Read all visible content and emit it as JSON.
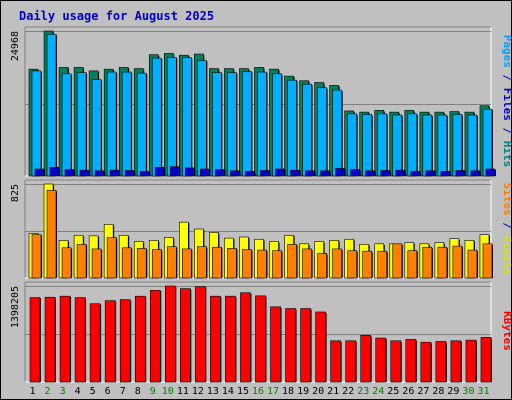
{
  "chart_data": [
    {
      "type": "bar",
      "title": "Daily usage for August 2025",
      "categories": [
        "1",
        "2",
        "3",
        "4",
        "5",
        "6",
        "7",
        "8",
        "9",
        "10",
        "11",
        "12",
        "13",
        "14",
        "15",
        "16",
        "17",
        "18",
        "19",
        "20",
        "21",
        "22",
        "23",
        "24",
        "25",
        "26",
        "27",
        "28",
        "29",
        "30",
        "31"
      ],
      "weekend_days": [
        "2",
        "3",
        "9",
        "10",
        "16",
        "17",
        "23",
        "24",
        "30",
        "31"
      ],
      "y_tick_label": "24968",
      "ylim": [
        0,
        24968
      ],
      "side_label": [
        {
          "text": "Pages",
          "color": "#00a0ff"
        },
        {
          "text": " / ",
          "color": "#0000cc"
        },
        {
          "text": "Files",
          "color": "#0000cc"
        },
        {
          "text": " / ",
          "color": "#0000cc"
        },
        {
          "text": "Hits",
          "color": "#008080"
        }
      ],
      "series": [
        {
          "name": "Hits",
          "color": "#00805c",
          "values": [
            18400,
            24968,
            18700,
            18700,
            18100,
            18400,
            18700,
            18500,
            20900,
            21100,
            20800,
            21000,
            18500,
            18500,
            18500,
            18700,
            18400,
            17200,
            16400,
            16100,
            15600,
            11200,
            11000,
            11300,
            11000,
            11300,
            11000,
            11000,
            11100,
            11000,
            12100
          ]
        },
        {
          "name": "Files",
          "color": "#00b0ff",
          "values": [
            18100,
            24400,
            17600,
            17800,
            16600,
            17900,
            17900,
            17700,
            20300,
            20400,
            20400,
            19900,
            17800,
            17800,
            18000,
            17900,
            17600,
            16500,
            15800,
            15200,
            14800,
            10700,
            10600,
            10700,
            10500,
            10700,
            10500,
            10500,
            10600,
            10500,
            11500
          ]
        },
        {
          "name": "Pages",
          "color": "#0000cc",
          "values": [
            1200,
            1500,
            1100,
            1000,
            900,
            1000,
            950,
            800,
            1500,
            1600,
            1400,
            1200,
            1100,
            900,
            800,
            950,
            1200,
            1000,
            900,
            900,
            1300,
            1100,
            900,
            950,
            1000,
            800,
            900,
            800,
            950,
            900,
            1200
          ]
        }
      ]
    },
    {
      "type": "bar",
      "categories": [
        "1",
        "2",
        "3",
        "4",
        "5",
        "6",
        "7",
        "8",
        "9",
        "10",
        "11",
        "12",
        "13",
        "14",
        "15",
        "16",
        "17",
        "18",
        "19",
        "20",
        "21",
        "22",
        "23",
        "24",
        "25",
        "26",
        "27",
        "28",
        "29",
        "30",
        "31"
      ],
      "y_tick_label": "825",
      "ylim": [
        0,
        825
      ],
      "side_label": [
        {
          "text": "Sites",
          "color": "#ff8000"
        },
        {
          "text": " / ",
          "color": "#0000cc"
        },
        {
          "text": "Visits",
          "color": "#e0e000"
        }
      ],
      "series": [
        {
          "name": "Visits",
          "color": "#ffff00",
          "values": [
            390,
            825,
            330,
            375,
            370,
            470,
            375,
            320,
            330,
            355,
            490,
            430,
            400,
            350,
            360,
            340,
            320,
            375,
            300,
            320,
            330,
            340,
            295,
            300,
            300,
            310,
            300,
            310,
            345,
            330,
            380
          ]
        },
        {
          "name": "Sites",
          "color": "#ff8000",
          "values": [
            380,
            770,
            265,
            295,
            255,
            355,
            265,
            260,
            250,
            275,
            255,
            275,
            270,
            260,
            250,
            245,
            240,
            295,
            255,
            215,
            255,
            240,
            235,
            235,
            300,
            240,
            270,
            270,
            280,
            245,
            300
          ]
        }
      ]
    },
    {
      "type": "bar",
      "categories": [
        "1",
        "2",
        "3",
        "4",
        "5",
        "6",
        "7",
        "8",
        "9",
        "10",
        "11",
        "12",
        "13",
        "14",
        "15",
        "16",
        "17",
        "18",
        "19",
        "20",
        "21",
        "22",
        "23",
        "24",
        "25",
        "26",
        "27",
        "28",
        "29",
        "30",
        "31"
      ],
      "y_tick_label": "1398205",
      "ylim": [
        0,
        1398205
      ],
      "side_label": [
        {
          "text": "KBytes",
          "color": "#ff0000"
        }
      ],
      "series": [
        {
          "name": "KBytes",
          "color": "#ff0000",
          "values": [
            1230000,
            1235000,
            1250000,
            1230000,
            1140000,
            1185000,
            1200000,
            1250000,
            1335000,
            1398205,
            1360000,
            1390000,
            1250000,
            1250000,
            1300000,
            1255000,
            1095000,
            1070000,
            1070000,
            1020000,
            600000,
            600000,
            680000,
            640000,
            600000,
            620000,
            580000,
            590000,
            600000,
            610000,
            650000
          ]
        }
      ]
    }
  ]
}
